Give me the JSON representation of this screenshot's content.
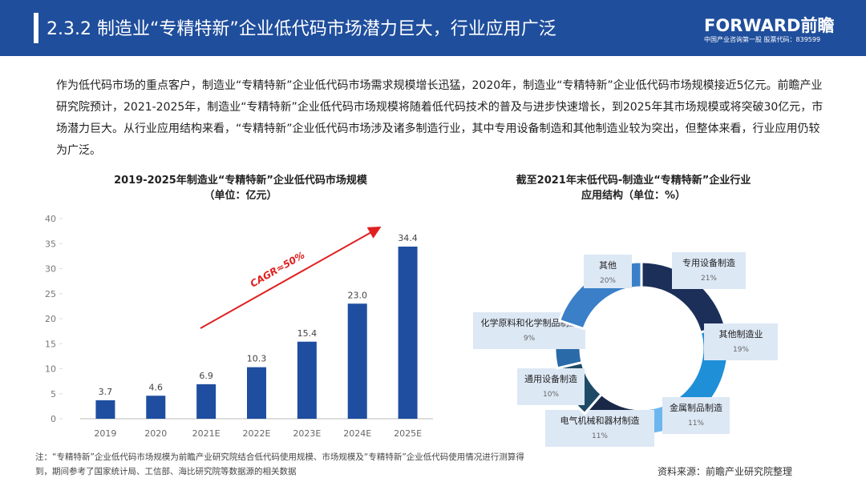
{
  "header": {
    "title": "2.3.2 制造业“专精特新”企业低代码市场潜力巨大，行业应用广泛",
    "logo": "FORWARD前瞻",
    "tagline": "中国产业咨询第一股 股票代码：839599"
  },
  "paragraph": "作为低代码市场的重点客户，制造业“专精特新”企业低代码市场需求规模增长迅猛，2020年，制造业“专精特新”企业低代码市场规模接近5亿元。前瞻产业研究院预计，2021-2025年，制造业“专精特新”企业低代码市场规模将随着低代码技术的普及与进步快速增长，到2025年其市场规模或将突破30亿元，市场潜力巨大。从行业应用结构来看，“专精特新”企业低代码市场涉及诸多制造行业，其中专用设备制造和其他制造业较为突出，但整体来看，行业应用仍较为广泛。",
  "note": "注：“专精特新”企业低代码市场规模为前瞻产业研究院结合低代码使用规模、市场规模及“专精特新”企业低代码使用情况进行测算得到，期间参考了国家统计局、工信部、海比研究院等数据源的相关数据",
  "source": "资料来源：前瞻产业研究院整理",
  "chart_data": [
    {
      "type": "bar",
      "title": "2019-2025年制造业“专精特新”企业低代码市场规模",
      "subtitle": "（单位：亿元）",
      "categories": [
        "2019",
        "2020",
        "2021E",
        "2022E",
        "2023E",
        "2024E",
        "2025E"
      ],
      "values": [
        3.7,
        4.6,
        6.9,
        10.3,
        15.4,
        23.0,
        34.4
      ],
      "value_labels": [
        "3.7",
        "4.6",
        "6.9",
        "10.3",
        "15.4",
        "23.0",
        "34.4"
      ],
      "color": "#1f4ea0",
      "ylim": [
        0,
        40
      ],
      "yticks": [
        0,
        5,
        10,
        15,
        20,
        25,
        30,
        35,
        40
      ],
      "annotation": "CAGR≈50%"
    },
    {
      "type": "donut",
      "title": [
        "截至2021年末低代码-制造业“专精特新”企业行业",
        "应用结构（单位：%）"
      ],
      "categories": [
        "专用设备制造",
        "其他制造业",
        "金属制品制造",
        "电气机械和器材制造",
        "通用设备制造",
        "化学原料和化学制品制造",
        "其他"
      ],
      "values": [
        21,
        19,
        11,
        11,
        10,
        9,
        20
      ],
      "value_labels": [
        "21%",
        "19%",
        "11%",
        "11%",
        "10%",
        "9%",
        "20%"
      ],
      "colors": [
        "#1b2f58",
        "#1f8fd8",
        "#6cb6ee",
        "#1a2848",
        "#1f4a66",
        "#2a6aa8",
        "#3a7fc8"
      ]
    }
  ]
}
